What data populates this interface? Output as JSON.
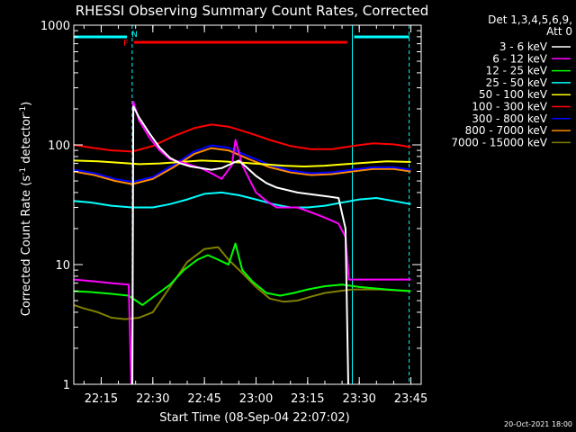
{
  "chart_data": {
    "type": "line",
    "title": "RHESSI Observing Summary Count Rates, Corrected",
    "xlabel": "Start Time (08-Sep-04 22:07:02)",
    "ylabel": "Corrected Count Rate (s",
    "ylabel_sup1": "-1",
    "ylabel_mid": " detector",
    "ylabel_sup2": "-1",
    "ylabel_end": ")",
    "yscale": "log",
    "ylim": [
      1,
      1000
    ],
    "xlim": [
      "22:07:02",
      "23:48:00"
    ],
    "ytick_labels": [
      "1",
      "10",
      "100",
      "1000"
    ],
    "xtick_labels": [
      "22:15",
      "22:30",
      "22:45",
      "23:00",
      "23:15",
      "23:30",
      "23:45"
    ],
    "legend": {
      "position": "right",
      "header_line1": "Det 1,3,4,5,6,9,",
      "header_line2": "Att 0"
    },
    "flags": {
      "F_label": "F",
      "N_label": "N",
      "F_color": "#ff0000",
      "N_color": "#00ffff",
      "F_span": [
        "22:24:30",
        "23:26:30"
      ],
      "N_spans": [
        [
          "22:07:02",
          "22:22:30"
        ],
        [
          "23:28:30",
          "23:44:30"
        ]
      ]
    },
    "vlines": [
      {
        "time": "22:24:00",
        "color": "#00ffff",
        "style": "dashed"
      },
      {
        "time": "23:28:00",
        "color": "#00ffff",
        "style": "solid"
      },
      {
        "time": "23:44:30",
        "color": "#00ffff",
        "style": "dashed"
      }
    ],
    "footer": "20-Oct-2021 18:00",
    "series": [
      {
        "name": "3 - 6 keV",
        "color": "#ffffff",
        "points": [
          [
            "22:24",
            0
          ],
          [
            "22:24:20",
            210
          ],
          [
            "22:26",
            170
          ],
          [
            "22:29",
            125
          ],
          [
            "22:32",
            95
          ],
          [
            "22:35",
            78
          ],
          [
            "22:38",
            70
          ],
          [
            "22:41",
            66
          ],
          [
            "22:44",
            64
          ],
          [
            "22:47",
            62
          ],
          [
            "22:50",
            64
          ],
          [
            "22:53",
            70
          ],
          [
            "22:55",
            74
          ],
          [
            "22:57",
            66
          ],
          [
            "23:00",
            55
          ],
          [
            "23:03",
            48
          ],
          [
            "23:06",
            44
          ],
          [
            "23:09",
            42
          ],
          [
            "23:12",
            40
          ],
          [
            "23:15",
            39
          ],
          [
            "23:18",
            38
          ],
          [
            "23:21",
            37
          ],
          [
            "23:24",
            36
          ],
          [
            "23:26",
            20
          ],
          [
            "23:27",
            0
          ]
        ]
      },
      {
        "name": "6 - 12 keV",
        "color": "#ff00ff",
        "points": [
          [
            "22:07",
            7.5
          ],
          [
            "22:12",
            7.3
          ],
          [
            "22:18",
            7.0
          ],
          [
            "22:23",
            6.8
          ],
          [
            "22:24",
            0
          ],
          [
            "22:24:20",
            230
          ],
          [
            "22:26",
            160
          ],
          [
            "22:29",
            115
          ],
          [
            "22:32",
            90
          ],
          [
            "22:35",
            76
          ],
          [
            "22:38",
            72
          ],
          [
            "22:41",
            68
          ],
          [
            "22:44",
            64
          ],
          [
            "22:47",
            58
          ],
          [
            "22:50",
            52
          ],
          [
            "22:53",
            68
          ],
          [
            "22:54",
            110
          ],
          [
            "22:56",
            68
          ],
          [
            "22:58",
            52
          ],
          [
            "23:00",
            40
          ],
          [
            "23:03",
            34
          ],
          [
            "23:06",
            30
          ],
          [
            "23:09",
            30
          ],
          [
            "23:12",
            30
          ],
          [
            "23:15",
            28
          ],
          [
            "23:18",
            26
          ],
          [
            "23:21",
            24
          ],
          [
            "23:24",
            22
          ],
          [
            "23:26",
            17
          ],
          [
            "23:27",
            7.5
          ],
          [
            "23:35",
            7.5
          ],
          [
            "23:45",
            7.5
          ]
        ]
      },
      {
        "name": "12 - 25 keV",
        "color": "#00ff00",
        "points": [
          [
            "22:07",
            6.0
          ],
          [
            "22:12",
            5.9
          ],
          [
            "22:18",
            5.7
          ],
          [
            "22:23",
            5.5
          ],
          [
            "22:27",
            4.6
          ],
          [
            "22:31",
            5.6
          ],
          [
            "22:35",
            6.8
          ],
          [
            "22:39",
            9.0
          ],
          [
            "22:43",
            11.0
          ],
          [
            "22:46",
            12.0
          ],
          [
            "22:49",
            11.0
          ],
          [
            "22:52",
            10.0
          ],
          [
            "22:54",
            15.0
          ],
          [
            "22:56",
            9.0
          ],
          [
            "22:59",
            7.2
          ],
          [
            "23:03",
            5.8
          ],
          [
            "23:07",
            5.5
          ],
          [
            "23:11",
            5.8
          ],
          [
            "23:15",
            6.2
          ],
          [
            "23:20",
            6.6
          ],
          [
            "23:25",
            6.8
          ],
          [
            "23:30",
            6.5
          ],
          [
            "23:38",
            6.2
          ],
          [
            "23:45",
            6.0
          ]
        ]
      },
      {
        "name": "25 - 50 keV",
        "color": "#00ffff",
        "points": [
          [
            "22:07",
            34
          ],
          [
            "22:12",
            33
          ],
          [
            "22:18",
            31
          ],
          [
            "22:24",
            30
          ],
          [
            "22:30",
            30
          ],
          [
            "22:35",
            32
          ],
          [
            "22:40",
            35
          ],
          [
            "22:45",
            39
          ],
          [
            "22:50",
            40
          ],
          [
            "22:55",
            38
          ],
          [
            "23:00",
            35
          ],
          [
            "23:05",
            32
          ],
          [
            "23:10",
            30
          ],
          [
            "23:15",
            30
          ],
          [
            "23:20",
            31
          ],
          [
            "23:25",
            33
          ],
          [
            "23:30",
            35
          ],
          [
            "23:35",
            36
          ],
          [
            "23:40",
            34
          ],
          [
            "23:45",
            32
          ]
        ]
      },
      {
        "name": "50 - 100 keV",
        "color": "#ffff00",
        "points": [
          [
            "22:07",
            74
          ],
          [
            "22:14",
            73
          ],
          [
            "22:20",
            71
          ],
          [
            "22:26",
            69
          ],
          [
            "22:32",
            70
          ],
          [
            "22:38",
            72
          ],
          [
            "22:44",
            74
          ],
          [
            "22:50",
            73
          ],
          [
            "22:56",
            71
          ],
          [
            "23:02",
            69
          ],
          [
            "23:08",
            67
          ],
          [
            "23:14",
            66
          ],
          [
            "23:20",
            67
          ],
          [
            "23:26",
            69
          ],
          [
            "23:32",
            71
          ],
          [
            "23:38",
            73
          ],
          [
            "23:45",
            72
          ]
        ]
      },
      {
        "name": "100 - 300 keV",
        "color": "#ff0000",
        "points": [
          [
            "22:07",
            100
          ],
          [
            "22:12",
            95
          ],
          [
            "22:18",
            90
          ],
          [
            "22:24",
            88
          ],
          [
            "22:30",
            98
          ],
          [
            "22:36",
            118
          ],
          [
            "22:42",
            138
          ],
          [
            "22:47",
            148
          ],
          [
            "22:52",
            142
          ],
          [
            "22:58",
            126
          ],
          [
            "23:04",
            110
          ],
          [
            "23:10",
            98
          ],
          [
            "23:16",
            92
          ],
          [
            "23:22",
            92
          ],
          [
            "23:28",
            98
          ],
          [
            "23:34",
            103
          ],
          [
            "23:40",
            101
          ],
          [
            "23:45",
            96
          ]
        ]
      },
      {
        "name": "300 - 800 keV",
        "color": "#0000ff",
        "points": [
          [
            "22:07",
            62
          ],
          [
            "22:13",
            58
          ],
          [
            "22:19",
            52
          ],
          [
            "22:24",
            49
          ],
          [
            "22:30",
            54
          ],
          [
            "22:36",
            68
          ],
          [
            "22:42",
            88
          ],
          [
            "22:47",
            99
          ],
          [
            "22:52",
            95
          ],
          [
            "22:58",
            80
          ],
          [
            "23:04",
            68
          ],
          [
            "23:10",
            61
          ],
          [
            "23:16",
            58
          ],
          [
            "23:22",
            59
          ],
          [
            "23:28",
            62
          ],
          [
            "23:34",
            65
          ],
          [
            "23:40",
            65
          ],
          [
            "23:45",
            62
          ]
        ]
      },
      {
        "name": "800 - 7000 keV",
        "color": "#ff8c00",
        "points": [
          [
            "22:07",
            60
          ],
          [
            "22:13",
            56
          ],
          [
            "22:19",
            50
          ],
          [
            "22:24",
            47
          ],
          [
            "22:30",
            52
          ],
          [
            "22:36",
            65
          ],
          [
            "22:42",
            84
          ],
          [
            "22:47",
            94
          ],
          [
            "22:52",
            90
          ],
          [
            "22:58",
            76
          ],
          [
            "23:04",
            65
          ],
          [
            "23:10",
            59
          ],
          [
            "23:16",
            56
          ],
          [
            "23:22",
            57
          ],
          [
            "23:28",
            60
          ],
          [
            "23:34",
            63
          ],
          [
            "23:40",
            63
          ],
          [
            "23:45",
            60
          ]
        ]
      },
      {
        "name": "7000 - 15000 keV",
        "color": "#808000",
        "points": [
          [
            "22:07",
            4.6
          ],
          [
            "22:10",
            4.3
          ],
          [
            "22:14",
            4.0
          ],
          [
            "22:18",
            3.6
          ],
          [
            "22:22",
            3.5
          ],
          [
            "22:26",
            3.6
          ],
          [
            "22:30",
            4.0
          ],
          [
            "22:35",
            6.5
          ],
          [
            "22:40",
            10.5
          ],
          [
            "22:45",
            13.5
          ],
          [
            "22:49",
            14.0
          ],
          [
            "22:52",
            11.0
          ],
          [
            "22:56",
            8.5
          ],
          [
            "23:00",
            6.5
          ],
          [
            "23:04",
            5.2
          ],
          [
            "23:08",
            4.9
          ],
          [
            "23:12",
            5.0
          ],
          [
            "23:16",
            5.4
          ],
          [
            "23:20",
            5.8
          ],
          [
            "23:24",
            6.0
          ],
          [
            "23:28",
            6.2
          ],
          [
            "23:36",
            6.2
          ],
          [
            "23:45",
            6.0
          ]
        ]
      }
    ]
  }
}
